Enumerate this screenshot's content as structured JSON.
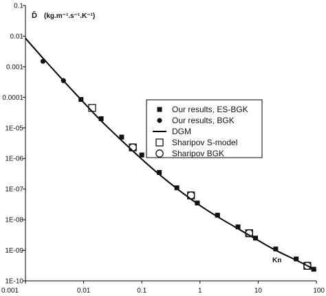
{
  "chart_data": {
    "type": "scatter",
    "title": "",
    "ylabel_symbol": "D̃",
    "ylabel_units": "(kg.m⁻¹.s⁻¹.K⁻¹)",
    "xlabel": "Kn",
    "x_scale": "log",
    "y_scale": "log",
    "xlim": [
      0.001,
      100
    ],
    "ylim": [
      1e-10,
      0.1
    ],
    "x_ticks": [
      "0.001",
      "0.01",
      "0.1",
      "1",
      "10",
      "100"
    ],
    "y_ticks": [
      "0.1",
      "0.01",
      "0.001",
      "0.0001",
      "1E-05",
      "1E-06",
      "1E-07",
      "1E-08",
      "1E-09",
      "1E-10"
    ],
    "grid": false,
    "legend_position": "center-right",
    "series": [
      {
        "name": "Our results, ES-BGK",
        "marker": "filled-square",
        "x": [
          0.009,
          0.02,
          0.045,
          0.1,
          0.2,
          0.4,
          0.9,
          2.0,
          4.5,
          9.0,
          20,
          45,
          90
        ],
        "y": [
          8.5e-05,
          2e-05,
          5e-06,
          1.3e-06,
          3.5e-07,
          1.1e-07,
          3.5e-08,
          1.4e-08,
          5.8e-09,
          2.5e-09,
          1.1e-09,
          5.2e-10,
          2.4e-10
        ]
      },
      {
        "name": "Our results, BGK",
        "marker": "filled-circle",
        "x": [
          0.002,
          0.0045
        ],
        "y": [
          0.0015,
          0.00035
        ]
      },
      {
        "name": "DGM",
        "marker": "line",
        "x": [
          0.001,
          0.002,
          0.005,
          0.01,
          0.02,
          0.05,
          0.1,
          0.2,
          0.5,
          1,
          2,
          5,
          10,
          20,
          50,
          100
        ],
        "y": [
          0.0085,
          0.0019,
          0.00028,
          6.8e-05,
          1.7e-05,
          3.2e-06,
          9.5e-07,
          3e-07,
          7.5e-08,
          2.9e-08,
          1.25e-08,
          4.5e-09,
          2.1e-09,
          1e-09,
          4.3e-10,
          2.2e-10
        ]
      },
      {
        "name": "Sharipov S-model",
        "marker": "open-square",
        "x": [
          0.014,
          0.07,
          0.7,
          7,
          70
        ],
        "y": [
          4.5e-05,
          2.3e-06,
          6.2e-08,
          3.6e-09,
          3.1e-10
        ]
      },
      {
        "name": "Sharipov BGK",
        "marker": "open-circle",
        "x": [
          0.07,
          0.7,
          7,
          70
        ],
        "y": [
          2.3e-06,
          6.2e-08,
          3.6e-09,
          3.1e-10
        ]
      }
    ]
  }
}
